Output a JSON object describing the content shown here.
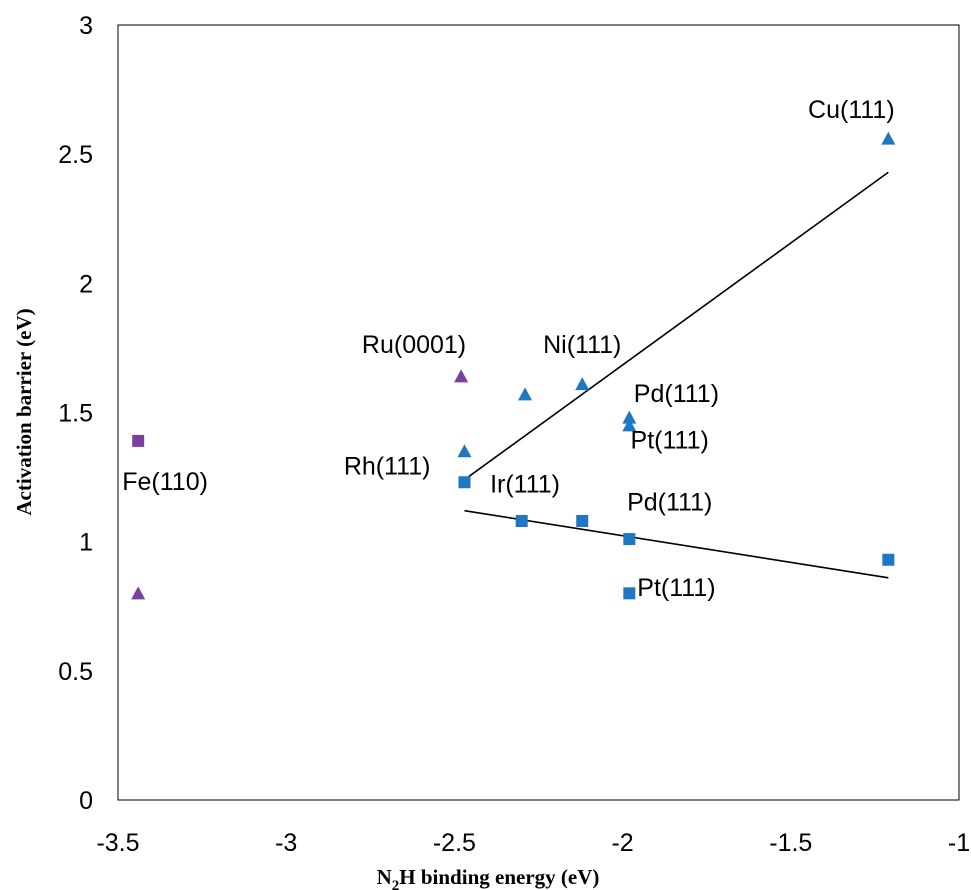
{
  "chart_data": {
    "type": "scatter",
    "xlabel": {
      "base": "N",
      "sub": "2",
      "rest": "H binding energy (eV)"
    },
    "ylabel": "Activation barrier (eV)",
    "xlim": [
      -3.5,
      -1
    ],
    "ylim": [
      0,
      3
    ],
    "xticks": [
      -3.5,
      -3,
      -2.5,
      -2,
      -1.5,
      -1
    ],
    "xtick_labels": [
      "-3.5",
      "-3",
      "-2.5",
      "-2",
      "-1.5",
      "-1"
    ],
    "yticks": [
      0,
      0.5,
      1,
      1.5,
      2,
      2.5,
      3
    ],
    "ytick_labels": [
      "0",
      "0.5",
      "1",
      "1.5",
      "2",
      "2.5",
      "3"
    ],
    "grid": false,
    "colors": {
      "blue": "#1f77c4",
      "purple": "#7b3fa0"
    },
    "series": [
      {
        "marker": "triangle",
        "color": "#1f77c4",
        "points": [
          {
            "x": -1.21,
            "y": 2.56
          },
          {
            "x": -2.12,
            "y": 1.61
          },
          {
            "x": -2.29,
            "y": 1.57
          },
          {
            "x": -1.98,
            "y": 1.48
          },
          {
            "x": -1.98,
            "y": 1.45
          },
          {
            "x": -2.47,
            "y": 1.35
          }
        ]
      },
      {
        "marker": "triangle",
        "color": "#7b3fa0",
        "points": [
          {
            "x": -2.48,
            "y": 1.64
          },
          {
            "x": -3.44,
            "y": 0.8
          }
        ]
      },
      {
        "marker": "square",
        "color": "#1f77c4",
        "points": [
          {
            "x": -2.47,
            "y": 1.23
          },
          {
            "x": -2.3,
            "y": 1.08
          },
          {
            "x": -2.12,
            "y": 1.08
          },
          {
            "x": -1.98,
            "y": 1.01
          },
          {
            "x": -1.98,
            "y": 0.8
          },
          {
            "x": -1.21,
            "y": 0.93
          }
        ]
      },
      {
        "marker": "square",
        "color": "#7b3fa0",
        "points": [
          {
            "x": -3.44,
            "y": 1.39
          }
        ]
      }
    ],
    "trendlines": [
      {
        "x1": -2.47,
        "y1": 1.24,
        "x2": -1.21,
        "y2": 2.43
      },
      {
        "x1": -2.47,
        "y1": 1.12,
        "x2": -1.21,
        "y2": 0.86
      }
    ],
    "annotations": [
      {
        "text": "Cu(111)",
        "x": -1.32,
        "y": 2.64
      },
      {
        "text": "Ni(111)",
        "x": -2.12,
        "y": 1.73
      },
      {
        "text": "Ru(0001)",
        "x": -2.62,
        "y": 1.73
      },
      {
        "text": "Pd(111)",
        "x": -1.84,
        "y": 1.54
      },
      {
        "text": "Pt(111)",
        "x": -1.86,
        "y": 1.36
      },
      {
        "text": "Fe(110)",
        "x": -3.36,
        "y": 1.2
      },
      {
        "text": "Rh(111)",
        "x": -2.7,
        "y": 1.26
      },
      {
        "text": "Ir(111)",
        "x": -2.29,
        "y": 1.19
      },
      {
        "text": "Pd(111)",
        "x": -1.86,
        "y": 1.12
      },
      {
        "text": "Pt(111)",
        "x": -1.84,
        "y": 0.79
      }
    ]
  }
}
